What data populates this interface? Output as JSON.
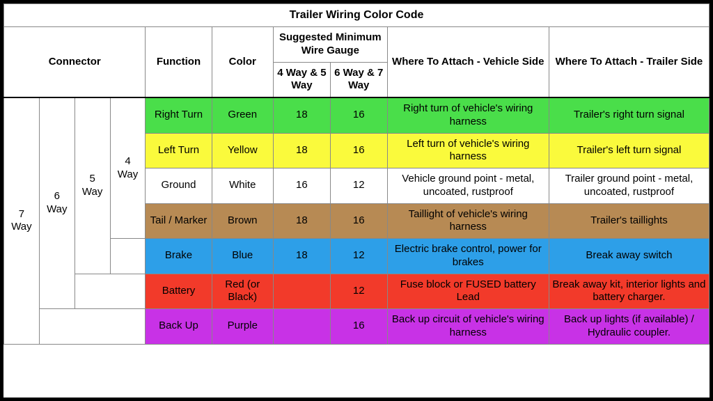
{
  "title": "Trailer Wiring Color Code",
  "headers": {
    "connector": "Connector",
    "function": "Function",
    "color": "Color",
    "gauge": "Suggested Minimum Wire Gauge",
    "gauge_45": "4 Way & 5 Way",
    "gauge_67": "6 Way & 7 Way",
    "vehicle": "Where To Attach - Vehicle Side",
    "trailer": "Where To Attach - Trailer Side"
  },
  "connectors": {
    "way7": "7 Way",
    "way6": "6 Way",
    "way5": "5 Way",
    "way4": "4 Way"
  },
  "colors": {
    "green": "#4ade4a",
    "yellow": "#fafa3c",
    "white": "#ffffff",
    "brown": "#b78a54",
    "blue": "#2d9fe8",
    "red": "#f23a2a",
    "purple": "#c832e6"
  },
  "rows": [
    {
      "fn": "Right Turn",
      "color": "Green",
      "g45": "18",
      "g67": "16",
      "veh": "Right turn of vehicle's wiring harness",
      "trl": "Trailer's right turn signal",
      "bg": "green"
    },
    {
      "fn": "Left Turn",
      "color": "Yellow",
      "g45": "18",
      "g67": "16",
      "veh": "Left turn of vehicle's wiring harness",
      "trl": "Trailer's left turn signal",
      "bg": "yellow"
    },
    {
      "fn": "Ground",
      "color": "White",
      "g45": "16",
      "g67": "12",
      "veh": "Vehicle ground point - metal, uncoated, rustproof",
      "trl": "Trailer ground point - metal, uncoated, rustproof",
      "bg": "white"
    },
    {
      "fn": "Tail / Marker",
      "color": "Brown",
      "g45": "18",
      "g67": "16",
      "veh": "Taillight of vehicle's wiring harness",
      "trl": "Trailer's taillights",
      "bg": "brown"
    },
    {
      "fn": "Brake",
      "color": "Blue",
      "g45": "18",
      "g67": "12",
      "veh": "Electric brake control, power for brakes",
      "trl": "Break away switch",
      "bg": "blue"
    },
    {
      "fn": "Battery",
      "color": "Red (or Black)",
      "g45": "",
      "g67": "12",
      "veh": "Fuse block or FUSED battery Lead",
      "trl": "Break away kit, interior lights and battery charger.",
      "bg": "red"
    },
    {
      "fn": "Back Up",
      "color": "Purple",
      "g45": "",
      "g67": "16",
      "veh": "Back up circuit of vehicle's wiring harness",
      "trl": "Back up lights (if available) / Hydraulic coupler.",
      "bg": "purple"
    }
  ]
}
